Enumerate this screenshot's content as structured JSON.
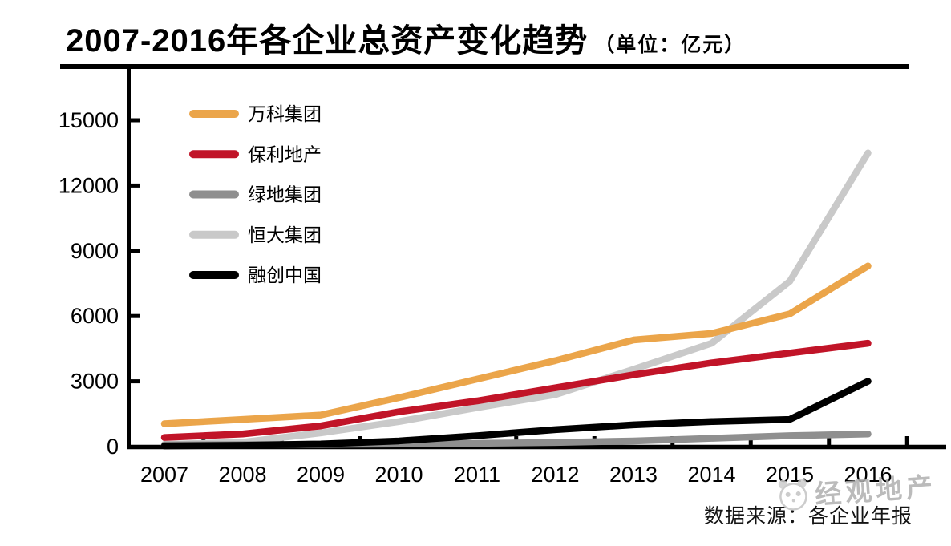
{
  "title": {
    "text": "2007-2016年各企业总资产变化趋势",
    "unit": "（单位：亿元）"
  },
  "source_note": "数据来源：各企业年报",
  "watermark": {
    "icon": "panda-mascot-icon",
    "text": "经观地产"
  },
  "colors": {
    "axis": "#000000",
    "background": "#ffffff",
    "watermark_gray": "#b0b0b0",
    "vanke_orange": "#EBA54A",
    "poly_red": "#C11428",
    "greenland_gray": "#8F8F8F",
    "evergrande_lightgray": "#C9C9C9",
    "sunac_black": "#000000"
  },
  "chart_data": {
    "type": "line",
    "title": "2007-2016年各企业总资产变化趋势",
    "unit_label": "亿元",
    "x": [
      "2007",
      "2008",
      "2009",
      "2010",
      "2011",
      "2012",
      "2013",
      "2014",
      "2015",
      "2016"
    ],
    "xlabel": "",
    "ylabel": "",
    "ylim": [
      0,
      15000
    ],
    "yticks": [
      0,
      3000,
      6000,
      9000,
      12000,
      15000
    ],
    "grid": false,
    "legend_position": "upper-left",
    "series": [
      {
        "name": "万科集团",
        "color": "#EBA54A",
        "values": [
          1050,
          1250,
          1450,
          2250,
          3100,
          3950,
          4900,
          5200,
          6100,
          8300
        ]
      },
      {
        "name": "保利地产",
        "color": "#C11428",
        "values": [
          420,
          580,
          950,
          1600,
          2100,
          2700,
          3300,
          3850,
          4300,
          4750
        ]
      },
      {
        "name": "绿地集团",
        "color": "#8F8F8F",
        "values": [
          80,
          90,
          100,
          120,
          150,
          190,
          260,
          380,
          500,
          580
        ]
      },
      {
        "name": "恒大集团",
        "color": "#C9C9C9",
        "values": [
          100,
          200,
          630,
          1150,
          1790,
          2390,
          3550,
          4750,
          7600,
          13500
        ]
      },
      {
        "name": "融创中国",
        "color": "#000000",
        "values": [
          30,
          60,
          120,
          260,
          500,
          780,
          1000,
          1150,
          1250,
          3000
        ]
      }
    ]
  }
}
